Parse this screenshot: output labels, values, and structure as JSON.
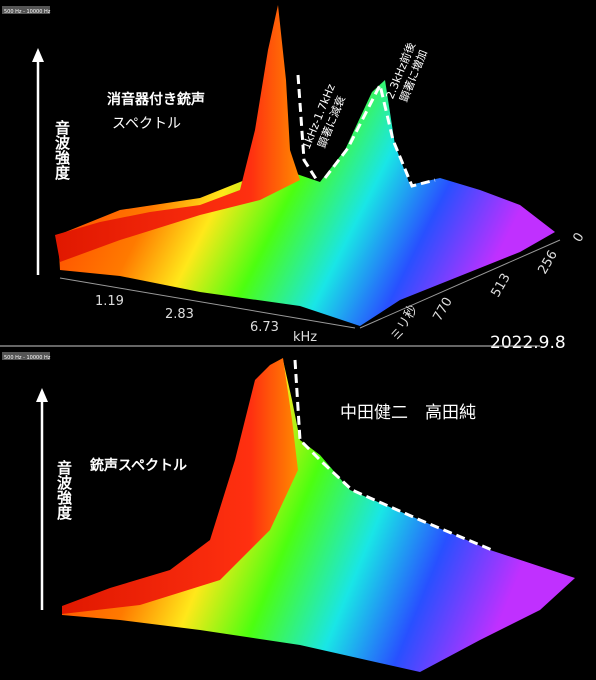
{
  "panels": [
    {
      "range_label": "500 Hz - 10000 Hz",
      "y_axis_label": "音波強度",
      "title": "消音器付き銃声",
      "subtitle": "スペクトル",
      "annotations": [
        {
          "lines": [
            "1kHz-1.7kHz",
            "顕著に減衰"
          ]
        },
        {
          "lines": [
            "2.3kHz前後",
            "顕著に増加"
          ]
        }
      ],
      "x_ticks": [
        "1.19",
        "2.83",
        "6.73"
      ],
      "x_unit": "kHz",
      "z_ticks": [
        "0",
        "256",
        "513",
        "770"
      ],
      "z_unit": "ミリ秒"
    },
    {
      "range_label": "500 Hz - 10000 Hz",
      "y_axis_label": "音波強度",
      "title": "銃声スペクトル"
    }
  ],
  "credits": "中田健二　高田純",
  "date": "2022.9.8"
}
